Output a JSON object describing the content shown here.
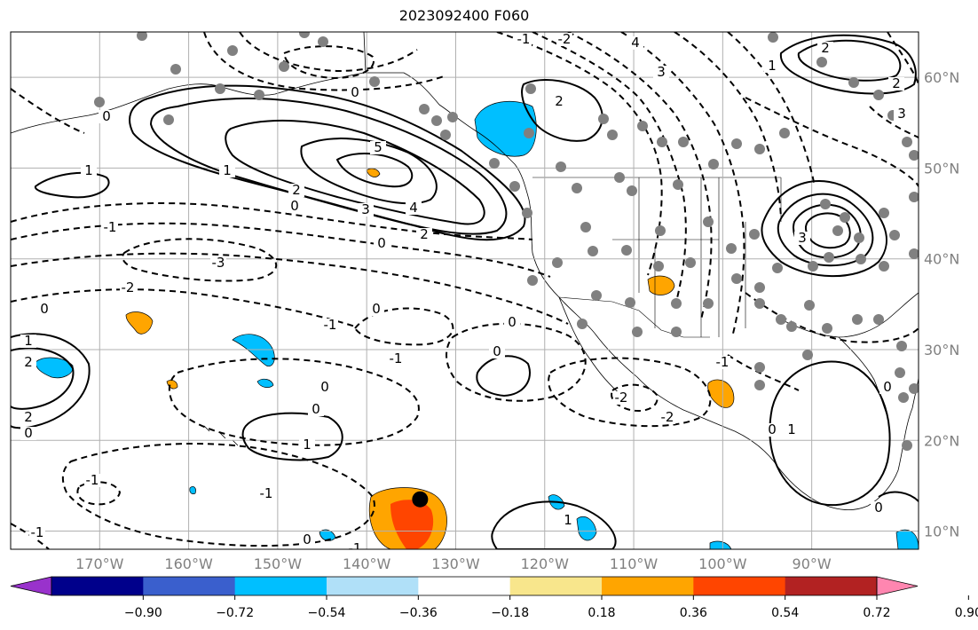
{
  "title": "2023092400 F060",
  "map": {
    "lon_range": [
      -180,
      -78
    ],
    "lat_range": [
      8,
      65
    ],
    "lon_ticks": [
      {
        "value": -170,
        "label": "170°W"
      },
      {
        "value": -160,
        "label": "160°W"
      },
      {
        "value": -150,
        "label": "150°W"
      },
      {
        "value": -140,
        "label": "140°W"
      },
      {
        "value": -130,
        "label": "130°W"
      },
      {
        "value": -120,
        "label": "120°W"
      },
      {
        "value": -110,
        "label": "110°W"
      },
      {
        "value": -100,
        "label": "100°W"
      },
      {
        "value": -90,
        "label": "90°W"
      }
    ],
    "lat_ticks": [
      {
        "value": 60,
        "label": "60°N"
      },
      {
        "value": 50,
        "label": "50°N"
      },
      {
        "value": 40,
        "label": "40°N"
      },
      {
        "value": 30,
        "label": "30°N"
      },
      {
        "value": 20,
        "label": "20°N"
      },
      {
        "value": 10,
        "label": "10°N"
      }
    ],
    "grid": true,
    "contour_labels": [
      "0",
      "1",
      "2",
      "3",
      "4",
      "5",
      "-1",
      "-2",
      "-3"
    ],
    "marker": {
      "lon": -134,
      "lat": 13.5,
      "color": "#000000"
    }
  },
  "colorbar": {
    "orientation": "horizontal",
    "extend": "both",
    "colors": [
      "#9932cc",
      "#00008b",
      "#3a5fcd",
      "#00bfff",
      "#b0e0f8",
      "#ffffff",
      "#f8e68c",
      "#ffa500",
      "#ff4500",
      "#b22222",
      "#ff86b0"
    ],
    "tick_labels": [
      "−0.90",
      "−0.72",
      "−0.54",
      "−0.36",
      "−0.18",
      "0.18",
      "0.36",
      "0.54",
      "0.72",
      "0.90"
    ]
  }
}
